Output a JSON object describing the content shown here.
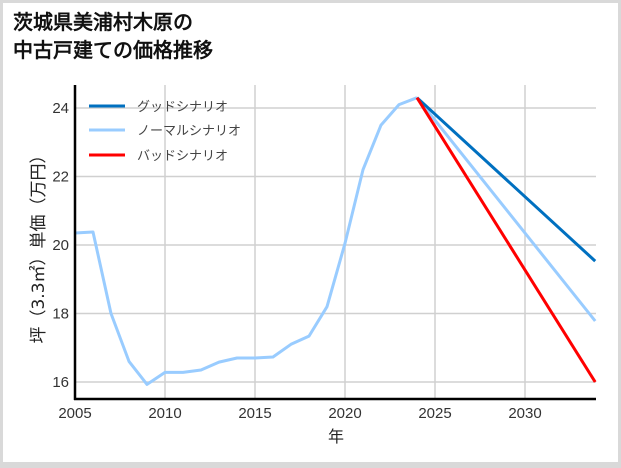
{
  "title": {
    "line1": "茨城県美浦村木原の",
    "line2": "中古戸建ての価格推移"
  },
  "axes": {
    "xlabel": "年",
    "ylabel": "坪（3.3㎡）単価（万円）",
    "x_ticks": [
      "2005",
      "2010",
      "2015",
      "2020",
      "2025",
      "2030"
    ],
    "y_ticks": [
      "16",
      "18",
      "20",
      "22",
      "24"
    ]
  },
  "legend": {
    "good": "グッドシナリオ",
    "normal": "ノーマルシナリオ",
    "bad": "バッドシナリオ"
  },
  "colors": {
    "good": "#0070c0",
    "normal": "#99ccff",
    "bad": "#ff0000",
    "grid": "#d0d0d0",
    "axis": "#000000"
  },
  "chart_data": {
    "type": "line",
    "title": "茨城県美浦村木原の中古戸建ての価格推移",
    "xlabel": "年",
    "ylabel": "坪（3.3㎡）単価（万円）",
    "xlim": [
      2005,
      2033.9
    ],
    "ylim": [
      15.5,
      24.9
    ],
    "grid": true,
    "legend_position": "upper left",
    "series": [
      {
        "name": "ノーマルシナリオ (実績)",
        "color": "#99ccff",
        "x": [
          2005,
          2006,
          2007,
          2008,
          2009,
          2010,
          2011,
          2012,
          2013,
          2014,
          2015,
          2016,
          2017,
          2018,
          2019,
          2020,
          2021,
          2022,
          2023,
          2024
        ],
        "values": [
          20.35,
          20.38,
          18.0,
          16.6,
          15.93,
          16.28,
          16.28,
          16.35,
          16.58,
          16.7,
          16.7,
          16.73,
          17.1,
          17.34,
          18.2,
          20.05,
          22.2,
          23.5,
          24.1,
          24.3
        ]
      },
      {
        "name": "グッドシナリオ",
        "color": "#0070c0",
        "x": [
          2024,
          2033.9
        ],
        "values": [
          24.3,
          19.53
        ]
      },
      {
        "name": "ノーマルシナリオ",
        "color": "#99ccff",
        "x": [
          2024,
          2033.9
        ],
        "values": [
          24.3,
          17.78
        ]
      },
      {
        "name": "バッドシナリオ",
        "color": "#ff0000",
        "x": [
          2024,
          2033.9
        ],
        "values": [
          24.3,
          16.0
        ]
      }
    ]
  }
}
